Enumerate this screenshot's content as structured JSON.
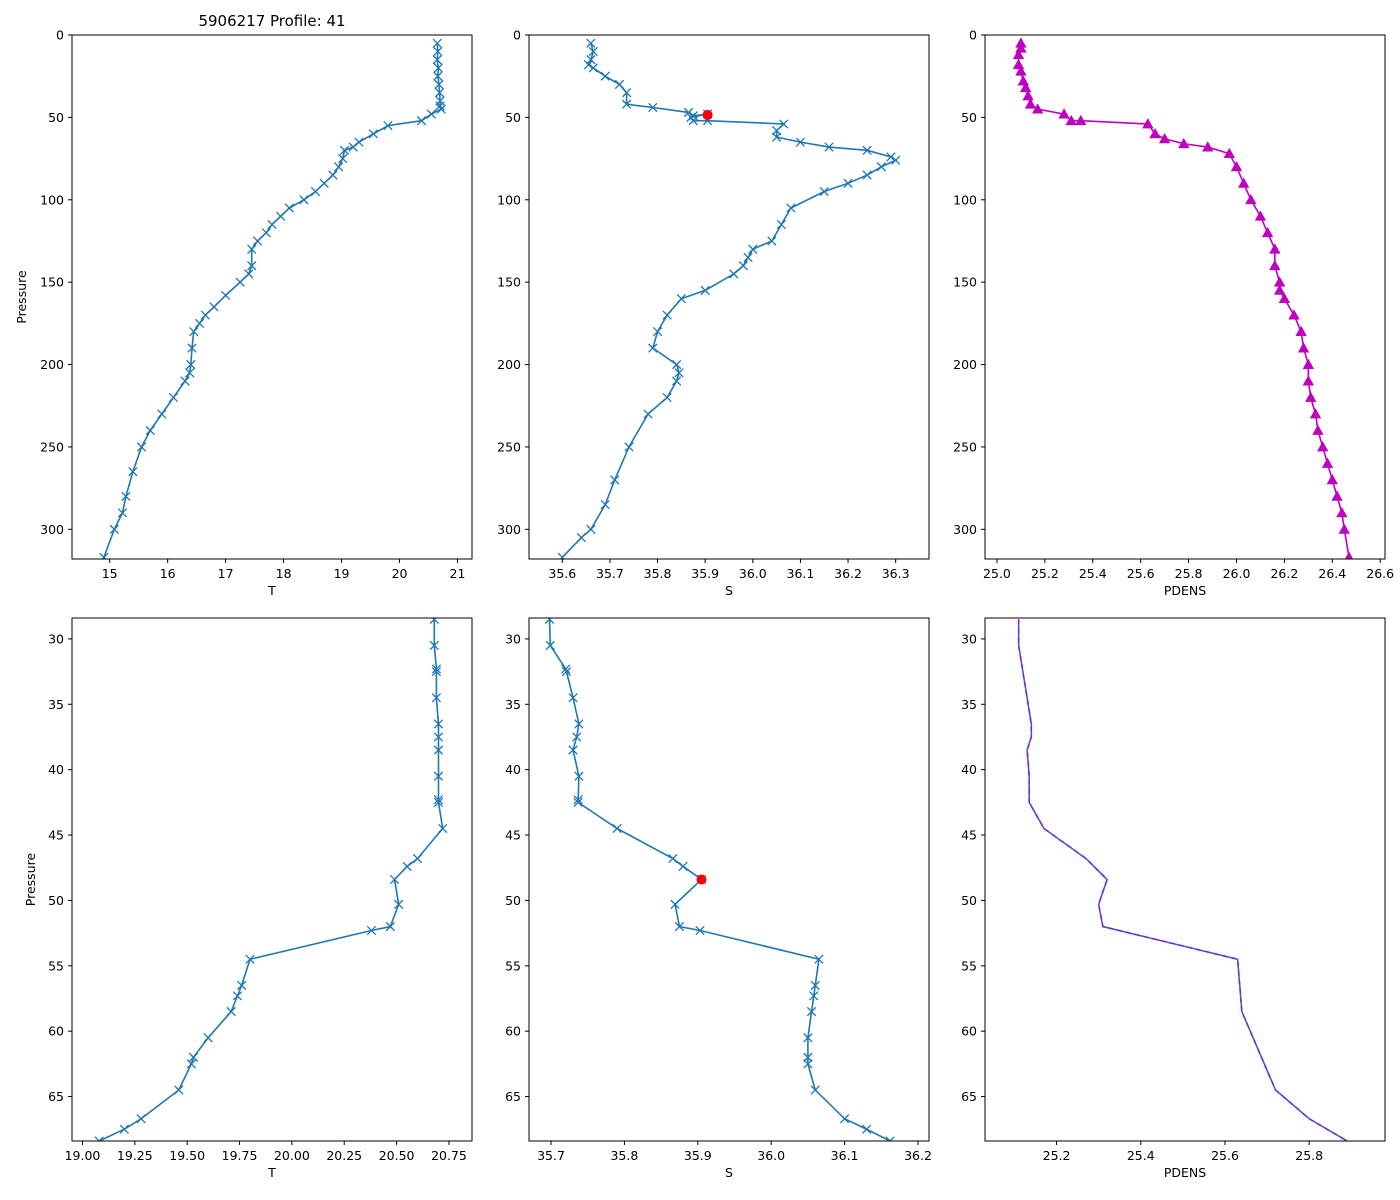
{
  "figure": {
    "title": "5906217 Profile: 41"
  },
  "colors": {
    "line": "#1f77b4",
    "flag": "#ff0000",
    "density": "#bf00bf",
    "axis": "#000000"
  },
  "chart_data": [
    {
      "type": "line",
      "panel": "top-left",
      "title": "5906217 Profile: 41",
      "xlabel": "T",
      "ylabel": "Pressure",
      "xlim": [
        14.35,
        21.25
      ],
      "ylim": [
        318,
        0
      ],
      "xticks": [
        15,
        16,
        17,
        18,
        19,
        20,
        21
      ],
      "yticks": [
        0,
        50,
        100,
        150,
        200,
        250,
        300
      ],
      "marker": "x",
      "line": "solid",
      "series": [
        {
          "name": "T",
          "x": [
            20.65,
            20.66,
            20.65,
            20.67,
            20.66,
            20.68,
            20.69,
            20.7,
            20.7,
            20.72,
            20.55,
            20.38,
            19.8,
            19.55,
            19.3,
            19.2,
            19.05,
            19.02,
            18.95,
            18.85,
            18.7,
            18.55,
            18.35,
            18.1,
            17.95,
            17.8,
            17.7,
            17.55,
            17.45,
            17.45,
            17.4,
            17.25,
            17.0,
            16.8,
            16.65,
            16.55,
            16.45,
            16.42,
            16.4,
            16.38,
            16.3,
            16.1,
            15.9,
            15.7,
            15.55,
            15.4,
            15.28,
            15.22,
            15.08,
            14.9
          ],
          "y": [
            5,
            10,
            15,
            20,
            25,
            30,
            35,
            40,
            43,
            45,
            48,
            52,
            55,
            60,
            65,
            68,
            70,
            75,
            80,
            85,
            90,
            95,
            100,
            105,
            110,
            115,
            120,
            125,
            130,
            140,
            145,
            150,
            158,
            165,
            170,
            175,
            180,
            190,
            200,
            205,
            210,
            220,
            230,
            240,
            250,
            265,
            280,
            290,
            300,
            317
          ]
        }
      ]
    },
    {
      "type": "line",
      "panel": "top-middle",
      "title": "",
      "xlabel": "S",
      "ylabel": "",
      "xlim": [
        35.53,
        36.37
      ],
      "ylim": [
        318,
        0
      ],
      "xticks": [
        35.6,
        35.7,
        35.8,
        35.9,
        36.0,
        36.1,
        36.2,
        36.3
      ],
      "yticks": [
        0,
        50,
        100,
        150,
        200,
        250,
        300
      ],
      "marker": "x",
      "line": "solid",
      "series": [
        {
          "name": "S",
          "x": [
            35.66,
            35.665,
            35.66,
            35.655,
            35.665,
            35.69,
            35.72,
            35.735,
            35.735,
            35.79,
            35.865,
            35.875,
            35.905,
            35.87,
            35.875,
            35.905,
            36.065,
            36.05,
            36.05,
            36.1,
            36.16,
            36.24,
            36.29,
            36.3,
            36.27,
            36.24,
            36.2,
            36.15,
            36.08,
            36.06,
            36.04,
            36.0,
            35.99,
            35.98,
            35.96,
            35.9,
            35.85,
            35.82,
            35.8,
            35.79,
            35.84,
            35.845,
            35.84,
            35.82,
            35.78,
            35.74,
            35.71,
            35.69,
            35.66,
            35.64,
            35.6
          ],
          "y": [
            5,
            10,
            15,
            18,
            20,
            25,
            30,
            35,
            42,
            44,
            47,
            49,
            48,
            50,
            52,
            52,
            54,
            58,
            62,
            65,
            68,
            70,
            74,
            76,
            80,
            85,
            90,
            95,
            105,
            115,
            125,
            130,
            135,
            140,
            145,
            155,
            160,
            170,
            180,
            190,
            200,
            205,
            210,
            220,
            230,
            250,
            270,
            285,
            300,
            305,
            317
          ]
        },
        {
          "name": "flagged",
          "x": [
            35.905
          ],
          "y": [
            48.5
          ]
        }
      ]
    },
    {
      "type": "line",
      "panel": "top-right",
      "title": "",
      "xlabel": "PDENS",
      "ylabel": "",
      "xlim": [
        24.95,
        26.62
      ],
      "ylim": [
        318,
        0
      ],
      "xticks": [
        25.0,
        25.2,
        25.4,
        25.6,
        25.8,
        26.0,
        26.2,
        26.4,
        26.6
      ],
      "yticks": [
        0,
        50,
        100,
        150,
        200,
        250,
        300
      ],
      "marker": "^",
      "line": "solid",
      "series": [
        {
          "name": "PDENS",
          "x": [
            25.1,
            25.1,
            25.09,
            25.09,
            25.1,
            25.11,
            25.12,
            25.13,
            25.14,
            25.17,
            25.28,
            25.31,
            25.35,
            25.63,
            25.66,
            25.7,
            25.78,
            25.88,
            25.97,
            26.0,
            26.03,
            26.06,
            26.1,
            26.13,
            26.16,
            26.16,
            26.18,
            26.18,
            26.2,
            26.24,
            26.27,
            26.28,
            26.3,
            26.3,
            26.31,
            26.33,
            26.34,
            26.36,
            26.38,
            26.4,
            26.42,
            26.44,
            26.45,
            26.47
          ],
          "y": [
            5,
            8,
            12,
            18,
            22,
            28,
            32,
            37,
            42,
            45,
            48,
            52,
            52,
            54,
            60,
            63,
            66,
            68,
            72,
            80,
            90,
            100,
            110,
            120,
            130,
            140,
            150,
            155,
            160,
            170,
            180,
            190,
            200,
            210,
            220,
            230,
            240,
            250,
            260,
            270,
            280,
            290,
            300,
            317
          ]
        }
      ]
    },
    {
      "type": "line",
      "panel": "bottom-left",
      "title": "",
      "xlabel": "T",
      "ylabel": "Pressure",
      "xlim": [
        18.95,
        20.86
      ],
      "ylim": [
        68.4,
        28.4
      ],
      "xticks": [
        19.0,
        19.25,
        19.5,
        19.75,
        20.0,
        20.25,
        20.5,
        20.75
      ],
      "yticks": [
        30,
        35,
        40,
        45,
        50,
        55,
        60,
        65
      ],
      "marker": "x",
      "line": "solid",
      "series": [
        {
          "name": "T",
          "x": [
            20.68,
            20.68,
            20.69,
            20.69,
            20.69,
            20.7,
            20.7,
            20.7,
            20.7,
            20.7,
            20.7,
            20.72,
            20.6,
            20.55,
            20.49,
            20.51,
            20.47,
            20.38,
            19.8,
            19.76,
            19.74,
            19.71,
            19.6,
            19.53,
            19.52,
            19.46,
            19.28,
            19.2,
            19.08
          ],
          "y": [
            28.5,
            30.5,
            32.3,
            32.5,
            34.5,
            36.5,
            37.5,
            38.5,
            40.5,
            42.3,
            42.5,
            44.5,
            46.8,
            47.4,
            48.4,
            50.3,
            52.0,
            52.3,
            54.5,
            56.5,
            57.3,
            58.5,
            60.5,
            62.0,
            62.5,
            64.5,
            66.7,
            67.5,
            68.4
          ]
        }
      ]
    },
    {
      "type": "line",
      "panel": "bottom-middle",
      "title": "",
      "xlabel": "S",
      "ylabel": "",
      "xlim": [
        35.67,
        36.215
      ],
      "ylim": [
        68.4,
        28.4
      ],
      "xticks": [
        35.7,
        35.8,
        35.9,
        36.0,
        36.1,
        36.2
      ],
      "yticks": [
        30,
        35,
        40,
        45,
        50,
        55,
        60,
        65
      ],
      "marker": "x",
      "line": "solid",
      "series": [
        {
          "name": "S",
          "x": [
            35.698,
            35.699,
            35.72,
            35.721,
            35.73,
            35.738,
            35.735,
            35.73,
            35.738,
            35.737,
            35.737,
            35.79,
            35.866,
            35.88,
            35.905,
            35.869,
            35.875,
            35.903,
            36.065,
            36.06,
            36.058,
            36.055,
            36.05,
            36.05,
            36.05,
            36.06,
            36.1,
            36.13,
            36.162
          ],
          "y": [
            28.5,
            30.5,
            32.3,
            32.5,
            34.5,
            36.5,
            37.5,
            38.5,
            40.5,
            42.3,
            42.5,
            44.5,
            46.8,
            47.4,
            48.4,
            50.3,
            52.0,
            52.3,
            54.5,
            56.5,
            57.3,
            58.5,
            60.5,
            62.0,
            62.5,
            64.5,
            66.7,
            67.5,
            68.4
          ]
        },
        {
          "name": "flagged",
          "x": [
            35.905
          ],
          "y": [
            48.4
          ]
        }
      ]
    },
    {
      "type": "line",
      "panel": "bottom-right",
      "title": "",
      "xlabel": "PDENS",
      "ylabel": "",
      "xlim": [
        25.03,
        25.98
      ],
      "ylim": [
        68.4,
        28.4
      ],
      "xticks": [
        25.2,
        25.4,
        25.6,
        25.8
      ],
      "yticks": [
        30,
        35,
        40,
        45,
        50,
        55,
        60,
        65
      ],
      "marker": "",
      "line": "solid+dashed",
      "series": [
        {
          "name": "PDENS",
          "x": [
            25.11,
            25.11,
            25.12,
            25.13,
            25.14,
            25.14,
            25.13,
            25.135,
            25.135,
            25.17,
            25.27,
            25.32,
            25.3,
            25.31,
            25.63,
            25.64,
            25.72,
            25.8,
            25.89
          ],
          "y": [
            28.5,
            30.5,
            32.5,
            34.5,
            36.5,
            37.5,
            38.5,
            40.5,
            42.5,
            44.5,
            46.8,
            48.4,
            50.3,
            52.0,
            54.5,
            58.5,
            64.5,
            66.7,
            68.4
          ]
        }
      ]
    }
  ]
}
